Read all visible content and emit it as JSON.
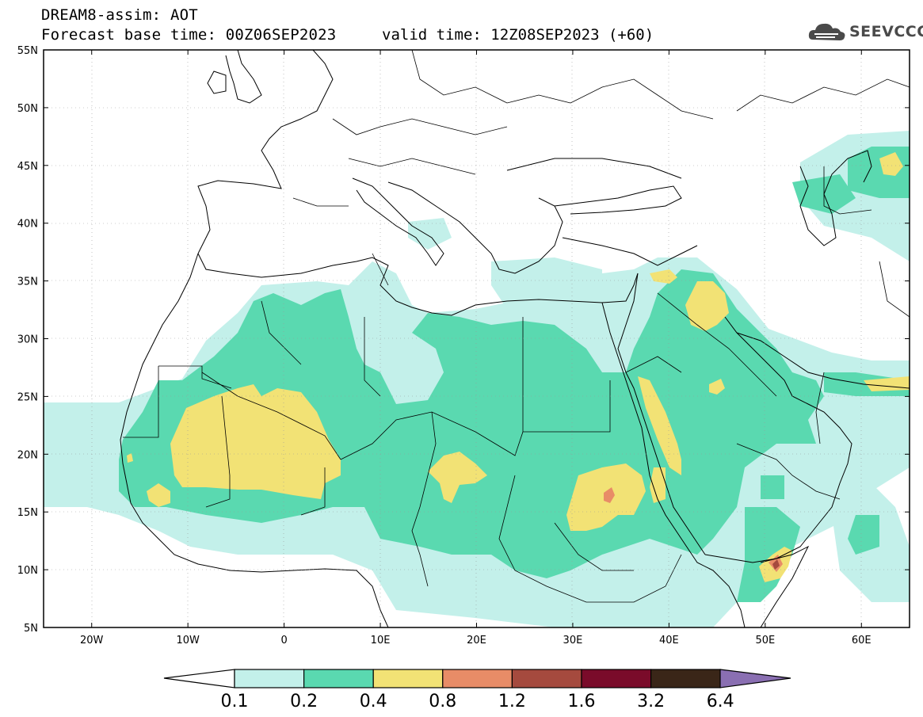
{
  "header": {
    "line1": "DREAM8-assim: AOT",
    "line2": "Forecast base time: 00Z06SEP2023",
    "valid": "valid time: 12Z08SEP2023 (+60)"
  },
  "logo": {
    "text": "SEEVCCC",
    "icon": "cloud-logo-icon"
  },
  "map": {
    "lat_labels": [
      "55N",
      "50N",
      "45N",
      "40N",
      "35N",
      "30N",
      "25N",
      "20N",
      "15N",
      "10N",
      "5N"
    ],
    "lon_labels": [
      "20W",
      "10W",
      "0",
      "10E",
      "20E",
      "30E",
      "40E",
      "50E",
      "60E"
    ],
    "lon_range": [
      -25,
      65
    ],
    "lat_range": [
      5,
      55
    ]
  },
  "colors": {
    "c1": "#c3f0ea",
    "c2": "#5ad9b0",
    "c3": "#f2e275",
    "c4": "#e88c67",
    "c5": "#a54a3e",
    "c6": "#7a0b2a",
    "c7": "#3a2618",
    "c8": "#8a6fb2"
  },
  "legend": {
    "labels": [
      "0.1",
      "0.2",
      "0.4",
      "0.8",
      "1.2",
      "1.6",
      "3.2",
      "6.4"
    ],
    "colors": [
      "#c3f0ea",
      "#5ad9b0",
      "#f2e275",
      "#e88c67",
      "#a54a3e",
      "#7a0b2a",
      "#3a2618"
    ],
    "over_color": "#8a6fb2",
    "under_color": "#ffffff"
  }
}
